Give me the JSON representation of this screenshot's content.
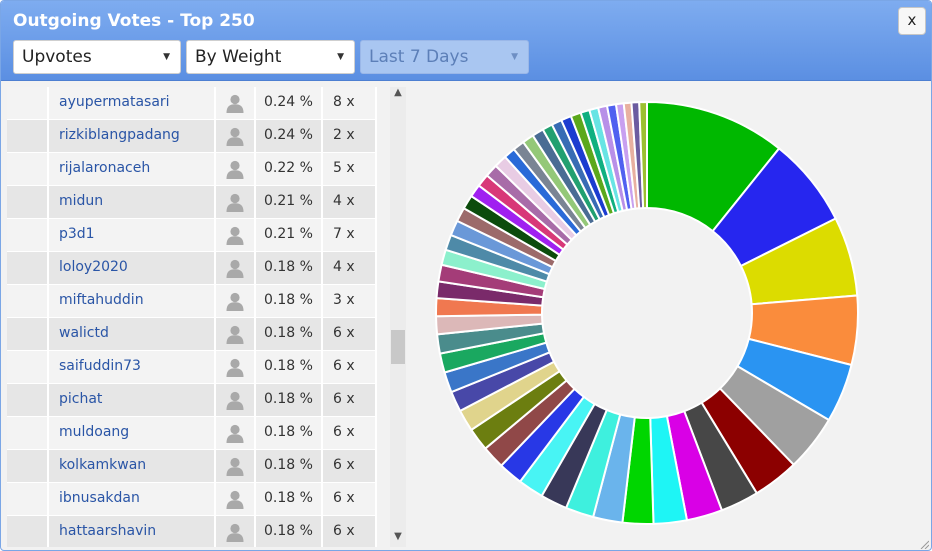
{
  "window": {
    "title": "Outgoing Votes - Top 250",
    "close_label": "x"
  },
  "filters": {
    "vote_type": "Upvotes",
    "sort": "By Weight",
    "period": "Last 7 Days"
  },
  "icons": {
    "user": "user-silhouette-icon",
    "caret": "caret-down-icon",
    "close": "close-icon"
  },
  "rows": [
    {
      "name": "ayupermatasari",
      "pct": "0.24 %",
      "count": "8 x"
    },
    {
      "name": "rizkiblangpadang",
      "pct": "0.24 %",
      "count": "2 x"
    },
    {
      "name": "rijalaronaceh",
      "pct": "0.22 %",
      "count": "5 x"
    },
    {
      "name": "midun",
      "pct": "0.21 %",
      "count": "4 x"
    },
    {
      "name": "p3d1",
      "pct": "0.21 %",
      "count": "7 x"
    },
    {
      "name": "loloy2020",
      "pct": "0.18 %",
      "count": "4 x"
    },
    {
      "name": "miftahuddin",
      "pct": "0.18 %",
      "count": "3 x"
    },
    {
      "name": "walictd",
      "pct": "0.18 %",
      "count": "6 x"
    },
    {
      "name": "saifuddin73",
      "pct": "0.18 %",
      "count": "6 x"
    },
    {
      "name": "pichat",
      "pct": "0.18 %",
      "count": "6 x"
    },
    {
      "name": "muldoang",
      "pct": "0.18 %",
      "count": "6 x"
    },
    {
      "name": "kolkamkwan",
      "pct": "0.18 %",
      "count": "6 x"
    },
    {
      "name": "ibnusakdan",
      "pct": "0.18 %",
      "count": "6 x"
    },
    {
      "name": "hattaarshavin",
      "pct": "0.18 %",
      "count": "6 x"
    }
  ],
  "chart_data": {
    "type": "pie",
    "donut": true,
    "title": "",
    "legend": "none",
    "slices": [
      {
        "value": 11.0,
        "color": "#00b800"
      },
      {
        "value": 7.0,
        "color": "#2626ef"
      },
      {
        "value": 6.2,
        "color": "#dcdc00"
      },
      {
        "value": 5.4,
        "color": "#fa8c3c"
      },
      {
        "value": 4.6,
        "color": "#2a94f2"
      },
      {
        "value": 4.4,
        "color": "#a0a0a0"
      },
      {
        "value": 3.6,
        "color": "#8c0000"
      },
      {
        "value": 3.0,
        "color": "#474747"
      },
      {
        "value": 2.8,
        "color": "#d900e6"
      },
      {
        "value": 2.6,
        "color": "#1ef5f5"
      },
      {
        "value": 2.4,
        "color": "#00d600"
      },
      {
        "value": 2.3,
        "color": "#6ab4ec"
      },
      {
        "value": 2.2,
        "color": "#3ef0de"
      },
      {
        "value": 2.1,
        "color": "#383858"
      },
      {
        "value": 2.0,
        "color": "#48f4f4"
      },
      {
        "value": 1.9,
        "color": "#2838e6"
      },
      {
        "value": 1.8,
        "color": "#904848"
      },
      {
        "value": 1.8,
        "color": "#6c7e10"
      },
      {
        "value": 1.7,
        "color": "#e0d48c"
      },
      {
        "value": 1.6,
        "color": "#4848a8"
      },
      {
        "value": 1.6,
        "color": "#3a76c8"
      },
      {
        "value": 1.5,
        "color": "#1aa860"
      },
      {
        "value": 1.5,
        "color": "#4a8c8c"
      },
      {
        "value": 1.4,
        "color": "#dcb8b8"
      },
      {
        "value": 1.4,
        "color": "#f07850"
      },
      {
        "value": 1.3,
        "color": "#7a2a6a"
      },
      {
        "value": 1.3,
        "color": "#a43c78"
      },
      {
        "value": 1.2,
        "color": "#8cf0cc"
      },
      {
        "value": 1.2,
        "color": "#4e8aa8"
      },
      {
        "value": 1.2,
        "color": "#6a98d8"
      },
      {
        "value": 1.1,
        "color": "#9c6a6a"
      },
      {
        "value": 1.1,
        "color": "#0c4c0c"
      },
      {
        "value": 1.0,
        "color": "#a020f0"
      },
      {
        "value": 1.0,
        "color": "#d83878"
      },
      {
        "value": 1.0,
        "color": "#a86ca8"
      },
      {
        "value": 1.0,
        "color": "#e8cce4"
      },
      {
        "value": 0.9,
        "color": "#2a6ad8"
      },
      {
        "value": 0.9,
        "color": "#7a8494"
      },
      {
        "value": 0.9,
        "color": "#94c878"
      },
      {
        "value": 0.9,
        "color": "#4a6c94"
      },
      {
        "value": 0.8,
        "color": "#22a070"
      },
      {
        "value": 0.8,
        "color": "#386cb4"
      },
      {
        "value": 0.8,
        "color": "#1c3cd0"
      },
      {
        "value": 0.8,
        "color": "#5ca81c"
      },
      {
        "value": 0.7,
        "color": "#10b080"
      },
      {
        "value": 0.7,
        "color": "#68e4e4"
      },
      {
        "value": 0.7,
        "color": "#b890e8"
      },
      {
        "value": 0.7,
        "color": "#5060f0"
      },
      {
        "value": 0.6,
        "color": "#c8a0f0"
      },
      {
        "value": 0.6,
        "color": "#e8b0a0"
      },
      {
        "value": 0.6,
        "color": "#6c5ca0"
      },
      {
        "value": 0.6,
        "color": "#9cc030"
      }
    ]
  }
}
